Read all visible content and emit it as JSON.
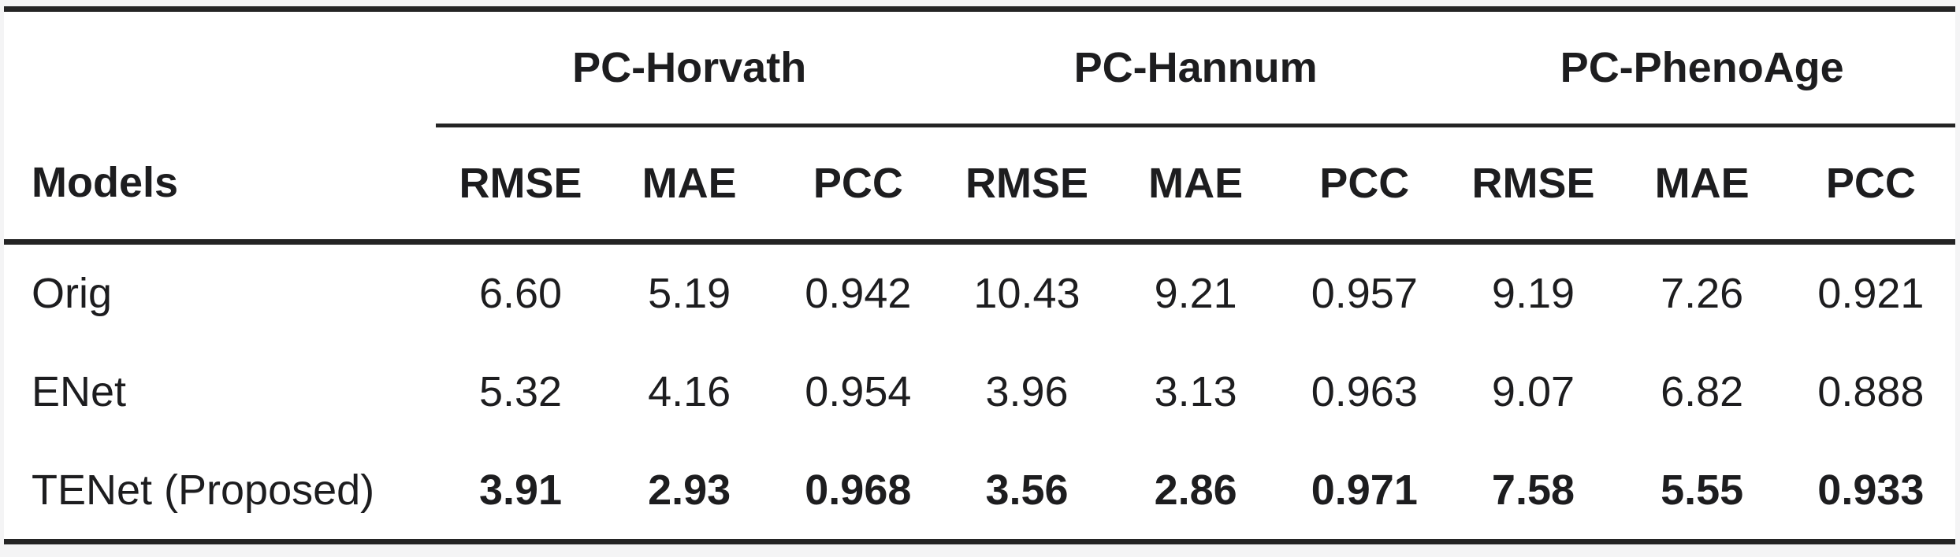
{
  "table": {
    "row_header": "Models",
    "groups": [
      {
        "label": "PC-Horvath"
      },
      {
        "label": "PC-Hannum"
      },
      {
        "label": "PC-PhenoAge"
      }
    ],
    "metrics": [
      "RMSE",
      "MAE",
      "PCC"
    ],
    "rows": [
      {
        "model": "Orig",
        "bold": false,
        "values": [
          "6.60",
          "5.19",
          "0.942",
          "10.43",
          "9.21",
          "0.957",
          "9.19",
          "7.26",
          "0.921"
        ]
      },
      {
        "model": "ENet",
        "bold": false,
        "values": [
          "5.32",
          "4.16",
          "0.954",
          "3.96",
          "3.13",
          "0.963",
          "9.07",
          "6.82",
          "0.888"
        ]
      },
      {
        "model": "TENet (Proposed)",
        "bold": true,
        "values": [
          "3.91",
          "2.93",
          "0.968",
          "3.56",
          "2.86",
          "0.971",
          "7.58",
          "5.55",
          "0.933"
        ]
      }
    ]
  },
  "colors": {
    "text": "#1d1d1f",
    "rule": "#242424",
    "page_background": "#f4f4f5",
    "table_background": "#ffffff"
  },
  "chart_data": {
    "type": "table",
    "title": "",
    "columns": [
      "Models",
      "PC-Horvath RMSE",
      "PC-Horvath MAE",
      "PC-Horvath PCC",
      "PC-Hannum RMSE",
      "PC-Hannum MAE",
      "PC-Hannum PCC",
      "PC-PhenoAge RMSE",
      "PC-PhenoAge MAE",
      "PC-PhenoAge PCC"
    ],
    "rows": [
      [
        "Orig",
        6.6,
        5.19,
        0.942,
        10.43,
        9.21,
        0.957,
        9.19,
        7.26,
        0.921
      ],
      [
        "ENet",
        5.32,
        4.16,
        0.954,
        3.96,
        3.13,
        0.963,
        9.07,
        6.82,
        0.888
      ],
      [
        "TENet (Proposed)",
        3.91,
        2.93,
        0.968,
        3.56,
        2.86,
        0.971,
        7.58,
        5.55,
        0.933
      ]
    ]
  }
}
